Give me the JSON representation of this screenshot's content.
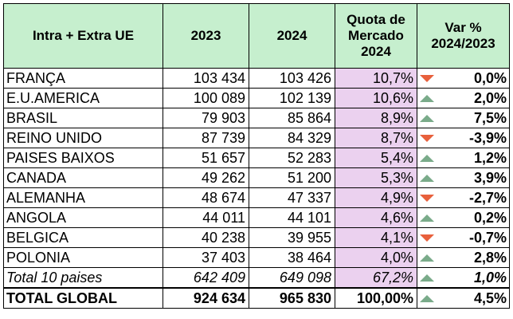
{
  "headers": {
    "region": "Intra + Extra UE",
    "y2023": "2023",
    "y2024": "2024",
    "share_line1": "Quota de",
    "share_line2": "Mercado",
    "share_line3": "2024",
    "var_line1": "Var %",
    "var_line2": "2024/2023"
  },
  "colors": {
    "header_bg": "#c6efce",
    "share_bg": "#ebd1ef",
    "arrow_up": "#7aab8a",
    "arrow_down": "#e8603c"
  },
  "rows": [
    {
      "name": "FRANÇA",
      "v2023": "103 434",
      "v2024": "103 426",
      "share": "10,7%",
      "trend": "down",
      "trend_icon": "arrow-down-icon",
      "var": "0,0%"
    },
    {
      "name": "E.U.AMERICA",
      "v2023": "100 089",
      "v2024": "102 139",
      "share": "10,6%",
      "trend": "up",
      "trend_icon": "arrow-up-icon",
      "var": "2,0%"
    },
    {
      "name": "BRASIL",
      "v2023": "79 903",
      "v2024": "85 864",
      "share": "8,9%",
      "trend": "up",
      "trend_icon": "arrow-up-icon",
      "var": "7,5%"
    },
    {
      "name": "REINO UNIDO",
      "v2023": "87 739",
      "v2024": "84 329",
      "share": "8,7%",
      "trend": "down",
      "trend_icon": "arrow-down-icon",
      "var": "-3,9%"
    },
    {
      "name": "PAISES BAIXOS",
      "v2023": "51 657",
      "v2024": "52 283",
      "share": "5,4%",
      "trend": "up",
      "trend_icon": "arrow-up-icon",
      "var": "1,2%"
    },
    {
      "name": "CANADA",
      "v2023": "49 262",
      "v2024": "51 200",
      "share": "5,3%",
      "trend": "up",
      "trend_icon": "arrow-up-icon",
      "var": "3,9%"
    },
    {
      "name": "ALEMANHA",
      "v2023": "48 674",
      "v2024": "47 337",
      "share": "4,9%",
      "trend": "down",
      "trend_icon": "arrow-down-icon",
      "var": "-2,7%"
    },
    {
      "name": "ANGOLA",
      "v2023": "44 011",
      "v2024": "44 101",
      "share": "4,6%",
      "trend": "up",
      "trend_icon": "arrow-up-icon",
      "var": "0,2%"
    },
    {
      "name": "BELGICA",
      "v2023": "40 238",
      "v2024": "39 955",
      "share": "4,1%",
      "trend": "down",
      "trend_icon": "arrow-down-icon",
      "var": "-0,7%"
    },
    {
      "name": "POLONIA",
      "v2023": "37 403",
      "v2024": "38 464",
      "share": "4,0%",
      "trend": "up",
      "trend_icon": "arrow-up-icon",
      "var": "2,8%"
    }
  ],
  "subtotal": {
    "name": "Total 10 paises",
    "v2023": "642 409",
    "v2024": "649 098",
    "share": "67,2%",
    "trend": "up",
    "trend_icon": "arrow-up-icon",
    "var": "1,0%"
  },
  "total": {
    "name": "TOTAL GLOBAL",
    "v2023": "924 634",
    "v2024": "965 830",
    "share": "100,00%",
    "trend": "up",
    "trend_icon": "arrow-up-icon",
    "var": "4,5%"
  }
}
